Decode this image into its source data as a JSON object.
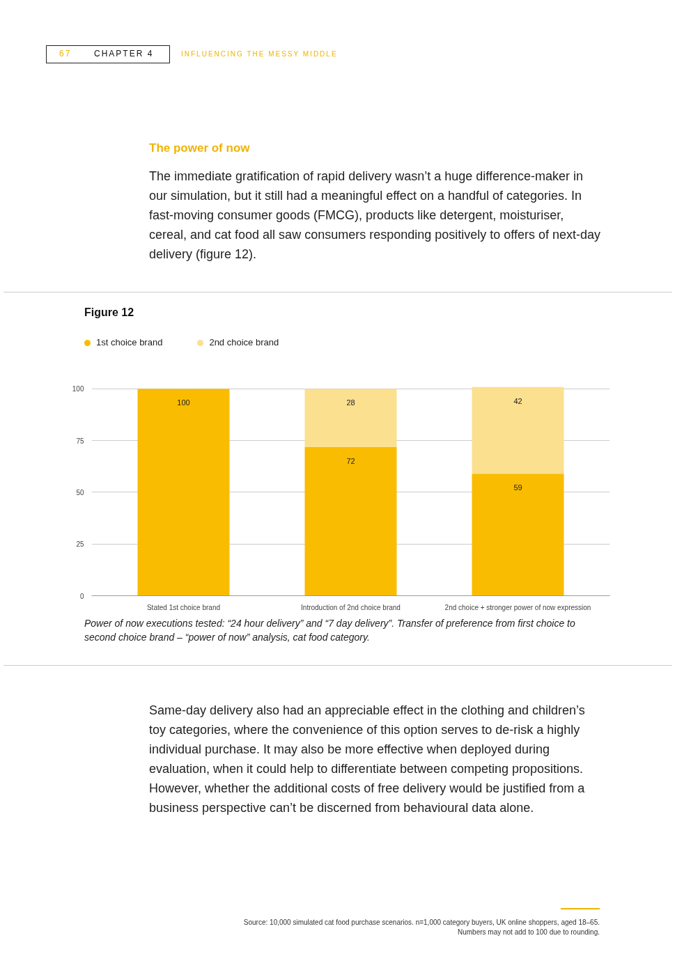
{
  "chart_data": {
    "type": "bar",
    "title": "Figure 12",
    "categories": [
      "Stated 1st choice brand",
      "Introduction of 2nd choice brand",
      "2nd choice + stronger power of now expression"
    ],
    "series": [
      {
        "name": "1st choice brand",
        "color": "#f9bc00",
        "values": [
          100,
          72,
          59
        ]
      },
      {
        "name": "2nd choice brand",
        "color": "#fbe08f",
        "values": [
          null,
          28,
          42
        ]
      }
    ],
    "stacked": true,
    "data_labels": true,
    "ylim": [
      0,
      101
    ],
    "yticks": [
      0,
      25,
      50,
      75,
      100
    ],
    "grid": "y",
    "legend": "top left",
    "annotations": [
      "67",
      "CHAPTER 4",
      "INFLUENCING THE MESSY MIDDLE",
      "The power of now",
      "The immediate gratification of rapid delivery wasn’t a huge difference-maker in our simulation, but it still had a meaningful effect on a handful of categories. In fast-moving consumer goods (FMCG), products like detergent, moisturiser, cereal, and cat food all saw consumers responding positively to offers of next-day delivery (figure 12).",
      "Power of now executions tested: “24 hour delivery” and “7 day delivery”. Transfer of preference from first choice to second choice brand – “power of now” analysis, cat food category.",
      "Same-day delivery also had an appreciable effect in the clothing and children’s toy categories, where the convenience of this option serves to de-risk a highly individual purchase. It may also be more effective when deployed during evaluation, when it could help to differentiate between competing propositions. However, whether the additional costs of free delivery would be justified from a business perspective can’t be discerned from behavioural data alone.",
      "Source: 10,000 simulated cat food purchase scenarios. n=1,000 category buyers, UK online shoppers, aged 18–65.",
      "Numbers may not add to 100 due to rounding."
    ]
  }
}
